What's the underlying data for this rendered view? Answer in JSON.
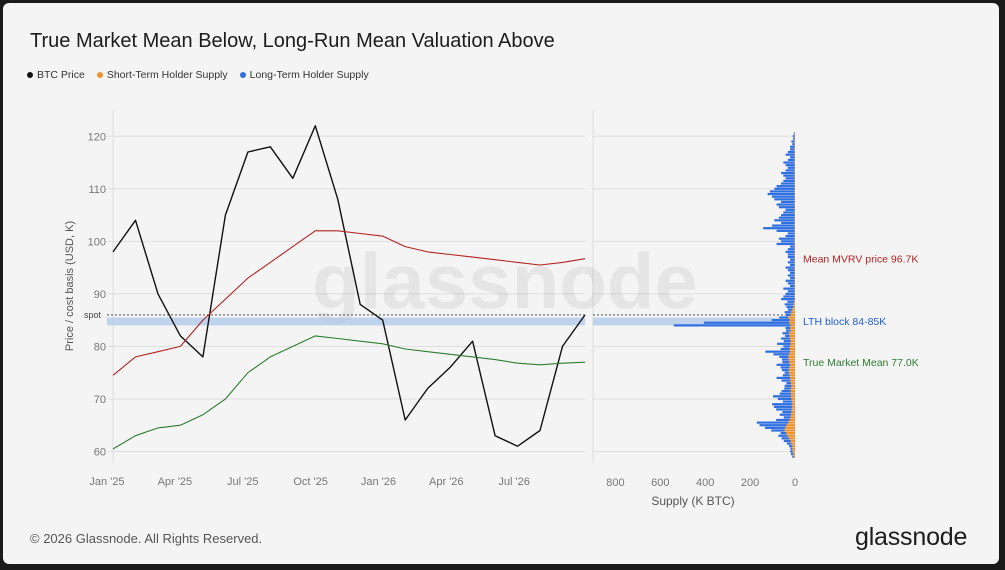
{
  "title": "True Market Mean Below, Long-Run Mean Valuation Above",
  "legend": [
    {
      "label": "BTC Price",
      "color": "#111111"
    },
    {
      "label": "Short-Term Holder Supply",
      "color": "#f0922b"
    },
    {
      "label": "Long-Term Holder Supply",
      "color": "#2f6fe0"
    }
  ],
  "watermark": "glassnode",
  "footer": "© 2026 Glassnode. All Rights Reserved.",
  "brand": "glassnode",
  "chart_data": [
    {
      "type": "line",
      "ylabel": "Price / cost basis (USD, K)",
      "ylim": [
        58,
        125
      ],
      "yticks": [
        "60",
        "70",
        "80",
        "90",
        "100",
        "110",
        "120"
      ],
      "xticks": [
        "Jan '25",
        "Apr '25",
        "Jul '25",
        "Oct '25",
        "Jan '26",
        "Apr '26",
        "Jul '26"
      ],
      "x": [
        "2025-01",
        "2025-02",
        "2025-03",
        "2025-04",
        "2025-05",
        "2025-06",
        "2025-07",
        "2025-08",
        "2025-09",
        "2025-10",
        "2025-11",
        "2025-12",
        "2026-01",
        "2026-02",
        "2026-03",
        "2026-04",
        "2026-05",
        "2026-06",
        "2026-07",
        "2026-08",
        "2026-09",
        "2026-10"
      ],
      "series": [
        {
          "name": "BTC Price",
          "color": "#111111",
          "values": [
            98,
            104,
            90,
            82,
            78,
            105,
            117,
            118,
            112,
            122,
            108,
            88,
            85,
            66,
            72,
            76,
            81,
            63,
            61,
            64,
            80,
            86
          ]
        },
        {
          "name": "Mean MVRV price 96.7K",
          "color": "#b22222",
          "values": [
            74.5,
            78,
            79,
            80,
            85,
            89,
            93,
            96,
            99,
            102,
            102,
            101.5,
            101,
            99,
            98,
            97.5,
            97,
            96.5,
            96,
            95.5,
            96,
            96.7
          ]
        },
        {
          "name": "True Market Mean 77.0K",
          "color": "#2e7d32",
          "values": [
            60.5,
            63,
            64.5,
            65,
            67,
            70,
            75,
            78,
            80,
            82,
            81.5,
            81,
            80.5,
            79.5,
            79,
            78.5,
            78,
            77.5,
            76.8,
            76.5,
            76.8,
            77.0
          ]
        }
      ],
      "spot": {
        "label": "spot",
        "value": 86
      },
      "lth_block": {
        "label": "LTH block 84-85K",
        "range": [
          84,
          85.5
        ]
      }
    },
    {
      "type": "bar",
      "orientation": "horizontal",
      "xlabel": "Supply (K BTC)",
      "xticks": [
        "800",
        "600",
        "400",
        "200",
        "0"
      ],
      "xlim": [
        900,
        0
      ],
      "ylim": [
        58,
        125
      ],
      "bucket_start": 59,
      "bucket_step": 0.5,
      "lth_values": [
        6,
        10,
        12,
        8,
        14,
        20,
        30,
        34,
        40,
        24,
        60,
        90,
        120,
        140,
        60,
        30,
        50,
        40,
        70,
        80,
        90,
        40,
        60,
        80,
        50,
        40,
        30,
        30,
        20,
        40,
        60,
        30,
        20,
        30,
        40,
        60,
        30,
        30,
        40,
        70,
        110,
        40,
        30,
        60,
        30,
        40,
        20,
        30,
        20,
        20,
        520,
        380,
        80,
        40,
        20,
        30,
        20,
        30,
        40,
        30,
        60,
        50,
        40,
        30,
        50,
        20,
        30,
        40,
        20,
        30,
        20,
        30,
        40,
        20,
        30,
        20,
        30,
        30,
        40,
        30,
        20,
        80,
        60,
        70,
        40,
        30,
        80,
        140,
        100,
        60,
        90,
        70,
        60,
        50,
        40,
        70,
        80,
        60,
        90,
        100,
        120,
        110,
        90,
        80,
        60,
        50,
        40,
        50,
        60,
        40,
        30,
        40,
        50,
        30,
        20,
        40,
        30,
        20,
        20,
        10,
        14,
        6,
        8,
        4
      ],
      "sth_values": [
        6,
        8,
        10,
        12,
        12,
        16,
        20,
        26,
        34,
        40,
        46,
        44,
        38,
        30,
        24,
        20,
        18,
        16,
        14,
        14,
        12,
        14,
        16,
        18,
        18,
        20,
        18,
        16,
        18,
        20,
        22,
        24,
        26,
        28,
        24,
        22,
        26,
        28,
        30,
        26,
        22,
        24,
        22,
        20,
        20,
        22,
        24,
        26,
        20,
        22,
        20,
        26,
        24,
        30,
        20,
        16,
        12,
        8,
        6,
        4,
        2,
        2,
        2,
        2,
        2,
        2,
        2,
        2,
        2,
        2,
        2,
        2,
        2,
        2,
        2,
        2,
        2,
        2,
        2,
        2,
        2,
        2,
        2,
        2,
        2,
        2,
        2,
        2,
        2,
        2,
        2,
        2,
        2,
        2,
        2,
        2,
        2,
        2,
        2,
        2,
        2,
        2,
        2,
        2,
        2,
        2,
        2,
        2,
        2,
        2,
        2,
        2,
        2,
        2,
        2,
        2,
        2,
        2,
        2,
        2,
        2,
        2,
        2,
        2
      ],
      "annotations": [
        {
          "label": "Mean MVRV price 96.7K",
          "value": 96.7,
          "color": "#b22222"
        },
        {
          "label": "LTH block 84-85K",
          "value": 84.8,
          "color": "#1f5fd6"
        },
        {
          "label": "True Market Mean 77.0K",
          "value": 77.0,
          "color": "#2e7d32"
        }
      ]
    }
  ]
}
